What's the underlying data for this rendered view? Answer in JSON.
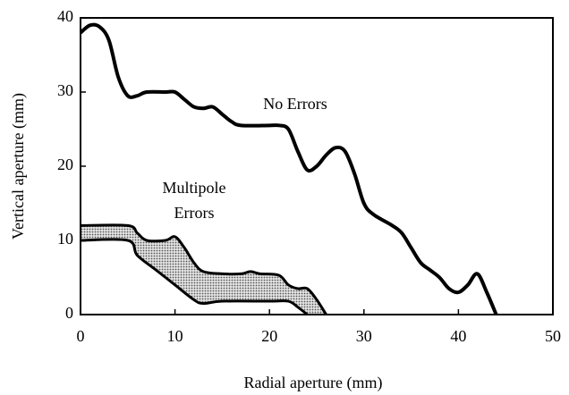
{
  "chart_data": {
    "type": "line",
    "xlabel": "Radial aperture (mm)",
    "ylabel": "Vertical aperture (mm)",
    "xlim": [
      0,
      50
    ],
    "xticks": [
      0,
      10,
      20,
      30,
      40,
      50
    ],
    "ylim": [
      0,
      40
    ],
    "yticks": [
      0,
      10,
      20,
      30,
      40
    ],
    "annotations": [
      "No Errors",
      "Multipole",
      "Errors"
    ],
    "series": [
      {
        "color": "#000000",
        "x": [
          0,
          1,
          2,
          3,
          4,
          5,
          6,
          7,
          9,
          10,
          11,
          12,
          13,
          14,
          15,
          16,
          17,
          20,
          21,
          22,
          23,
          24,
          25,
          26,
          27,
          28,
          29,
          30,
          31,
          33,
          34,
          35,
          36,
          37,
          38,
          39,
          40,
          41,
          42,
          43,
          44
        ],
        "values": [
          38,
          39,
          38.8,
          37,
          32,
          29.5,
          29.5,
          30,
          30,
          30,
          29,
          28,
          27.8,
          28,
          27,
          26,
          25.5,
          25.5,
          25.5,
          25,
          22,
          19.5,
          20,
          21.5,
          22.5,
          22,
          19,
          15,
          13.5,
          12,
          11,
          9,
          7,
          6,
          5,
          3.5,
          3,
          4,
          5.5,
          3,
          0
        ]
      },
      {
        "color": "#000000",
        "x": [
          0,
          5,
          6,
          7,
          9,
          10,
          11,
          12,
          13,
          15,
          17,
          18,
          19,
          21,
          22,
          23,
          24,
          25,
          26
        ],
        "values": [
          12,
          12,
          11,
          10,
          10,
          10.5,
          9,
          7,
          5.8,
          5.5,
          5.5,
          5.8,
          5.5,
          5.3,
          4,
          3.5,
          3.5,
          2,
          0
        ]
      },
      {
        "color": "#000000",
        "x": [
          0,
          5,
          6,
          8,
          10,
          12,
          13,
          15,
          20,
          22,
          23,
          24
        ],
        "values": [
          10,
          10,
          8,
          6,
          4,
          2,
          1.5,
          1.8,
          1.8,
          1.8,
          1,
          0
        ]
      }
    ],
    "fill_between": [
      1,
      2
    ],
    "fill_color": "#a8a8a8"
  }
}
